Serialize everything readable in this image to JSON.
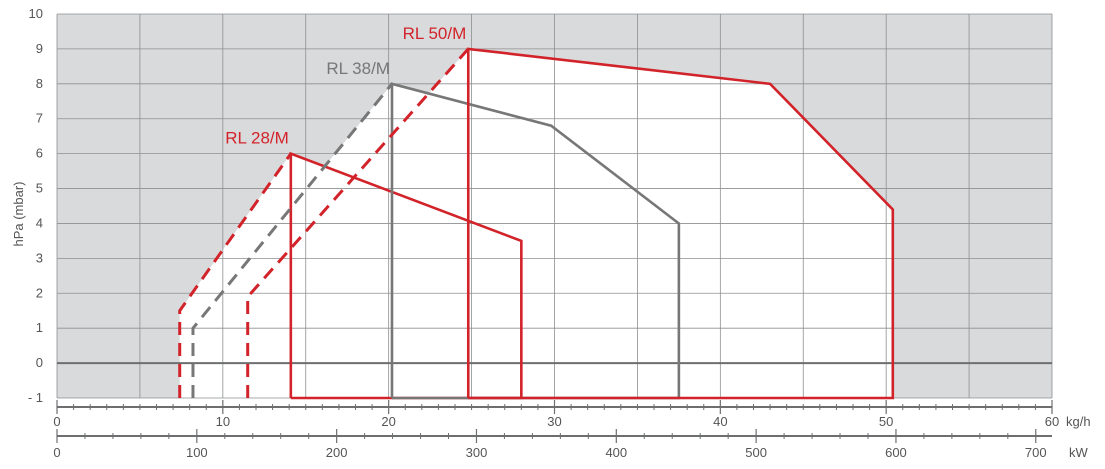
{
  "chart_data": {
    "type": "line",
    "title": "",
    "ylabel": "hPa (mbar)",
    "ylim": [
      -1,
      10
    ],
    "xlim": [
      0,
      60
    ],
    "yticks": [
      -1,
      0,
      1,
      2,
      3,
      4,
      5,
      6,
      7,
      8,
      9,
      10
    ],
    "y_tick_labels": [
      "- 1",
      "0",
      "1",
      "2",
      "3",
      "4",
      "5",
      "6",
      "7",
      "8",
      "9",
      "10"
    ],
    "x_primary": {
      "unit_label": "kg/h",
      "ticks": [
        0,
        10,
        20,
        30,
        40,
        50,
        60
      ],
      "tick_labels": [
        "0",
        "10",
        "20",
        "30",
        "40",
        "50",
        "60"
      ]
    },
    "x_secondary": {
      "unit_label": "kW",
      "ticks": [
        0,
        100,
        200,
        300,
        400,
        500,
        600,
        700
      ],
      "tick_labels": [
        "0",
        "100",
        "200",
        "300",
        "400",
        "500",
        "600",
        "700"
      ],
      "kw_per_kgh": 11.86
    },
    "grid": true,
    "series": [
      {
        "name": "RL 28/M",
        "color": "#d2232a",
        "dashed": [
          [
            7.4,
            -1
          ],
          [
            7.4,
            1.5
          ],
          [
            14.1,
            6.0
          ]
        ],
        "solid": [
          [
            14.1,
            -1
          ],
          [
            14.1,
            6.0
          ],
          [
            28.0,
            3.5
          ],
          [
            28.0,
            -1
          ],
          [
            14.1,
            -1
          ]
        ]
      },
      {
        "name": "RL 38/M",
        "color": "#777777",
        "dashed": [
          [
            8.2,
            -1
          ],
          [
            8.2,
            1.0
          ],
          [
            20.2,
            8.0
          ]
        ],
        "solid": [
          [
            20.2,
            -1
          ],
          [
            20.2,
            8.0
          ],
          [
            29.8,
            6.8
          ],
          [
            37.5,
            4.0
          ],
          [
            37.5,
            -1
          ],
          [
            20.2,
            -1
          ]
        ]
      },
      {
        "name": "RL 50/M",
        "color": "#d2232a",
        "dashed": [
          [
            11.5,
            -1
          ],
          [
            11.5,
            1.9
          ],
          [
            24.8,
            9.0
          ]
        ],
        "solid": [
          [
            24.8,
            -1
          ],
          [
            24.8,
            9.0
          ],
          [
            43.0,
            8.0
          ],
          [
            50.4,
            4.4
          ],
          [
            50.4,
            -1
          ],
          [
            24.8,
            -1
          ]
        ]
      }
    ]
  }
}
